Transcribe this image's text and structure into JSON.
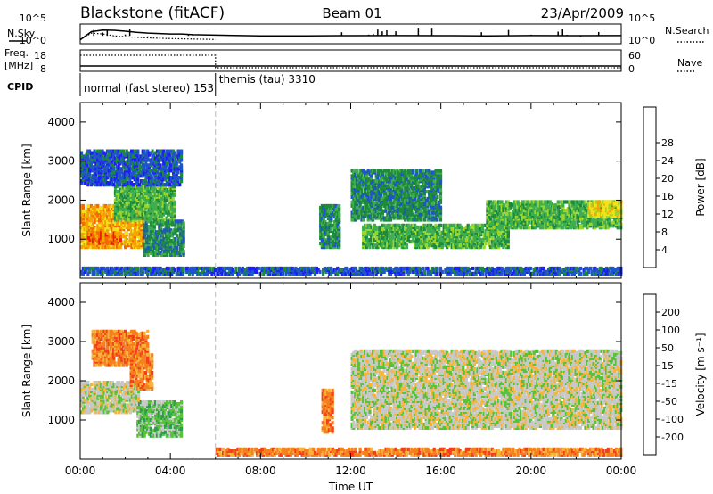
{
  "header": {
    "station": "Blackstone (fitACF)",
    "beam": "Beam 01",
    "date": "23/Apr/2009"
  },
  "panel_labels": {
    "nsky": "N.Sky",
    "nsearch": "N.Search",
    "freq_1": "Freq.",
    "freq_2": "[MHz]",
    "nave": "Nave",
    "cpid": "CPID"
  },
  "cpid_modes": [
    {
      "label": "normal (fast stereo) 153",
      "start_hour": 0
    },
    {
      "label": "themis (tau) 3310",
      "start_hour": 6
    }
  ],
  "colors": {
    "power": [
      "#1f1ff0",
      "#1f55c8",
      "#1e8a3c",
      "#3fae4f",
      "#9cd62a",
      "#f2e21a",
      "#f5a300",
      "#f26a00",
      "#e81e0c"
    ],
    "velocity": [
      "#e8201a",
      "#f2401a",
      "#f5801e",
      "#f5b43a",
      "#c8c8c8",
      "#58c23a",
      "#2e9a52",
      "#2a6ac8",
      "#1e2ed8"
    ]
  },
  "chart_data": [
    {
      "type": "line",
      "title": "Blackstone (fitACF) Beam 01 23/Apr/2009",
      "ylabel_left": "N.Sky",
      "ylabel_right": "N.Search",
      "yticks_left": [
        "10^5",
        "10^0"
      ],
      "yticks_right": [
        "10^5",
        "10^0"
      ],
      "series": [
        {
          "name": "N.Sky",
          "values_hour": [
            0,
            0.5,
            1,
            1.5,
            2,
            2.5,
            3,
            3.5,
            4,
            4.5,
            5,
            5.5,
            6,
            8,
            10,
            12,
            14,
            16,
            18,
            20,
            22,
            24
          ],
          "values": [
            10,
            1200,
            3000,
            2500,
            1500,
            800,
            500,
            400,
            300,
            300,
            200,
            180,
            150,
            100,
            100,
            110,
            120,
            110,
            100,
            120,
            110,
            120
          ]
        },
        {
          "name": "N.Search",
          "values_hour": [
            0,
            0.5,
            1,
            1.5,
            2,
            3,
            4,
            5,
            6
          ],
          "values": [
            10,
            500,
            300,
            100,
            60,
            30,
            20,
            15,
            12
          ]
        }
      ]
    },
    {
      "type": "line",
      "ylabel_left": "Freq. [MHz]",
      "ylabel_right": "Nave",
      "yticks_left": [
        "18",
        "8"
      ],
      "yticks_right": [
        "60",
        "0"
      ],
      "series": [
        {
          "name": "Freq.",
          "x": [
            0,
            24
          ],
          "values": [
            10.5,
            10.5
          ]
        },
        {
          "name": "Nave",
          "x": [
            0,
            6,
            6,
            24
          ],
          "values": [
            45,
            45,
            10,
            10
          ]
        }
      ]
    },
    {
      "type": "heatmap",
      "xlabel": "",
      "ylabel": "Slant Range [km]",
      "xlim": [
        0,
        24
      ],
      "ylim": [
        0,
        4500
      ],
      "yticks": [
        1000,
        2000,
        3000,
        4000
      ],
      "colorbar": {
        "label": "Power [dB]",
        "ticks": [
          4,
          8,
          12,
          16,
          20,
          24,
          28
        ],
        "range": [
          0,
          30
        ]
      },
      "marker_hour": 6,
      "regions": [
        {
          "t": [
            0,
            2.8
          ],
          "r": [
            800,
            1900
          ],
          "value": 22
        },
        {
          "t": [
            0.3,
            1.8
          ],
          "r": [
            900,
            1200
          ],
          "value": 28
        },
        {
          "t": [
            1.5,
            4.2
          ],
          "r": [
            1500,
            2400
          ],
          "value": 12
        },
        {
          "t": [
            2.8,
            4.6
          ],
          "r": [
            600,
            1500
          ],
          "value": 6
        },
        {
          "t": [
            0,
            4.5
          ],
          "r": [
            2400,
            3300
          ],
          "value": 4
        },
        {
          "t": [
            10.6,
            11.5
          ],
          "r": [
            800,
            1900
          ],
          "value": 6
        },
        {
          "t": [
            12,
            16
          ],
          "r": [
            1500,
            2800
          ],
          "value": 8
        },
        {
          "t": [
            12.5,
            19
          ],
          "r": [
            800,
            1400
          ],
          "value": 10
        },
        {
          "t": [
            18,
            24
          ],
          "r": [
            1300,
            2000
          ],
          "value": 12
        },
        {
          "t": [
            22.5,
            24
          ],
          "r": [
            1600,
            2000
          ],
          "value": 18
        },
        {
          "t": [
            0,
            24
          ],
          "r": [
            120,
            300
          ],
          "value": 4
        }
      ]
    },
    {
      "type": "heatmap",
      "xlabel": "Time UT",
      "ylabel": "Slant Range [km]",
      "xlim": [
        0,
        24
      ],
      "ylim": [
        0,
        4500
      ],
      "yticks": [
        1000,
        2000,
        3000,
        4000
      ],
      "xticks": [
        "00:00",
        "04:00",
        "08:00",
        "12:00",
        "16:00",
        "20:00",
        "00:00"
      ],
      "colorbar": {
        "label": "Velocity [m s⁻¹]",
        "ticks": [
          200,
          100,
          50,
          15,
          -15,
          -50,
          -100,
          -200
        ]
      },
      "marker_hour": 6,
      "regions": [
        {
          "t": [
            0,
            2.6
          ],
          "r": [
            1200,
            2000
          ],
          "value": 0
        },
        {
          "t": [
            2.2,
            3.2
          ],
          "r": [
            1800,
            2700
          ],
          "value": -70
        },
        {
          "t": [
            2.5,
            4.5
          ],
          "r": [
            600,
            1500
          ],
          "value": 40
        },
        {
          "t": [
            0.5,
            3
          ],
          "r": [
            2400,
            3300
          ],
          "value": -70
        },
        {
          "t": [
            10.7,
            11.2
          ],
          "r": [
            700,
            1800
          ],
          "value": -70
        },
        {
          "t": [
            12,
            24
          ],
          "r": [
            800,
            2800
          ],
          "value": 0
        },
        {
          "t": [
            6,
            24
          ],
          "r": [
            120,
            300
          ],
          "value": -70
        }
      ]
    }
  ]
}
